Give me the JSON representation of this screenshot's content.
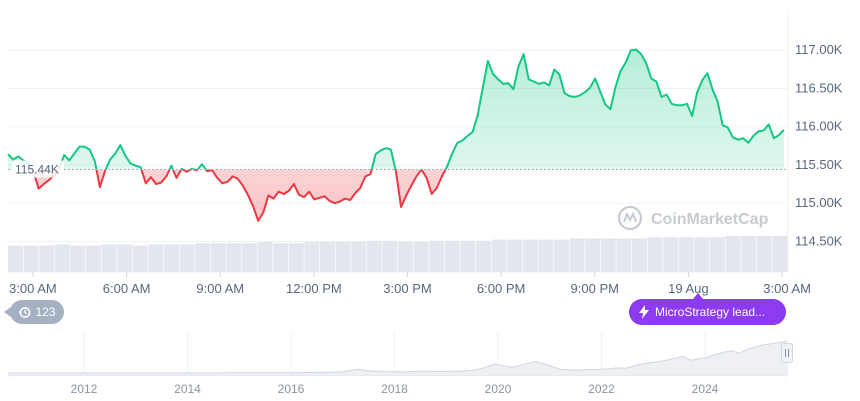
{
  "chart_data": {
    "type": "area",
    "x_labels": [
      "3:00 AM",
      "6:00 AM",
      "9:00 AM",
      "12:00 PM",
      "3:00 PM",
      "6:00 PM",
      "9:00 PM",
      "19 Aug",
      "3:00 AM"
    ],
    "y_ticks": [
      "117.00K",
      "116.50K",
      "116.00K",
      "115.50K",
      "115.00K",
      "114.50K"
    ],
    "y_tick_values": [
      117000,
      116500,
      116000,
      115500,
      115000,
      114500
    ],
    "ylim": [
      114100,
      117500
    ],
    "baseline_value": 115440,
    "baseline_label": "115.44K",
    "series": [
      {
        "values": [
          115640,
          115570,
          115610,
          115560,
          115520,
          115410,
          115190,
          115250,
          115300,
          115360,
          115450,
          115630,
          115560,
          115650,
          115740,
          115740,
          115700,
          115550,
          115210,
          115420,
          115570,
          115650,
          115760,
          115620,
          115520,
          115490,
          115470,
          115260,
          115340,
          115250,
          115270,
          115350,
          115490,
          115330,
          115450,
          115410,
          115450,
          115430,
          115510,
          115420,
          115430,
          115330,
          115260,
          115280,
          115350,
          115320,
          115230,
          115110,
          114960,
          114770,
          114880,
          115100,
          115060,
          115150,
          115120,
          115160,
          115250,
          115110,
          115080,
          115150,
          115050,
          115070,
          115090,
          115030,
          115000,
          115020,
          115060,
          115040,
          115130,
          115200,
          115350,
          115380,
          115640,
          115690,
          115720,
          115700,
          115410,
          114950,
          115100,
          115230,
          115350,
          115440,
          115330,
          115120,
          115200,
          115350,
          115480,
          115650,
          115790,
          115820,
          115880,
          115930,
          116150,
          116510,
          116860,
          116690,
          116620,
          116560,
          116570,
          116490,
          116790,
          116950,
          116620,
          116590,
          116560,
          116580,
          116540,
          116750,
          116680,
          116440,
          116400,
          116390,
          116410,
          116450,
          116510,
          116630,
          116460,
          116290,
          116230,
          116520,
          116730,
          116840,
          117000,
          117010,
          116950,
          116830,
          116630,
          116590,
          116390,
          116420,
          116300,
          116280,
          116280,
          116300,
          116140,
          116450,
          116610,
          116700,
          116490,
          116330,
          116020,
          115990,
          115860,
          115830,
          115850,
          115790,
          115880,
          115940,
          115950,
          116030,
          115850,
          115890,
          115960
        ]
      }
    ],
    "volume_values": [
      22,
      22,
      22,
      23,
      22,
      22,
      23,
      23,
      22,
      23,
      23,
      23,
      24,
      24,
      24,
      24,
      25,
      24,
      24,
      25,
      25,
      25,
      25,
      26,
      26,
      25,
      25,
      26,
      26,
      26,
      26,
      27,
      27,
      27,
      27,
      27,
      28,
      28,
      28,
      28,
      28,
      29,
      29,
      29,
      29,
      29,
      30,
      30,
      30,
      30
    ],
    "navigator_x_labels": [
      "2012",
      "2014",
      "2016",
      "2018",
      "2020",
      "2022",
      "2024"
    ],
    "navigator_values": [
      0.0,
      0.0,
      0.0,
      0.0,
      0.0,
      0.0,
      0.0,
      0.0,
      0.0,
      0.0,
      0.0,
      0.0,
      0.0,
      0.0,
      0.0,
      0.0,
      0.0,
      0.0,
      0.0,
      0.0,
      0.0,
      0.0,
      0.0,
      0.0,
      0.0,
      0.0,
      0.0,
      0.01,
      0.01,
      0.01,
      0.01,
      0.01,
      0.01,
      0.01,
      0.01,
      0.01,
      0.01,
      0.02,
      0.02,
      0.02,
      0.03,
      0.04,
      0.07,
      0.12,
      0.08,
      0.06,
      0.05,
      0.04,
      0.04,
      0.04,
      0.05,
      0.06,
      0.05,
      0.05,
      0.05,
      0.06,
      0.06,
      0.08,
      0.12,
      0.2,
      0.28,
      0.22,
      0.18,
      0.24,
      0.3,
      0.36,
      0.28,
      0.2,
      0.12,
      0.1,
      0.09,
      0.1,
      0.11,
      0.12,
      0.13,
      0.16,
      0.15,
      0.22,
      0.28,
      0.32,
      0.35,
      0.4,
      0.46,
      0.52,
      0.4,
      0.44,
      0.48,
      0.58,
      0.64,
      0.7,
      0.62,
      0.74,
      0.82,
      0.88,
      0.92,
      0.96,
      1.0
    ]
  },
  "colors": {
    "up_line": "#16c784",
    "down_line": "#ea3943",
    "up_fill": "#16c784",
    "down_fill": "#ea3943",
    "grid": "#eff2f5",
    "volume": "#e3e6ec",
    "navigator_line": "#cfd6e4"
  },
  "watermark": "CoinMarketCap",
  "events": {
    "counter_badge": "123",
    "counter_icon": "history-icon",
    "news_badge": "MicroStrategy lead...",
    "news_icon": "lightning-icon"
  }
}
